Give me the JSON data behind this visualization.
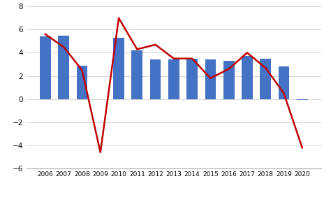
{
  "years": [
    2006,
    2007,
    2008,
    2009,
    2010,
    2011,
    2012,
    2013,
    2014,
    2015,
    2016,
    2017,
    2018,
    2019,
    2020
  ],
  "gdp_growth": [
    5.4,
    5.5,
    2.9,
    0.0,
    5.3,
    4.2,
    3.4,
    3.4,
    3.5,
    3.4,
    3.3,
    3.7,
    3.5,
    2.8,
    -0.1
  ],
  "maritime_growth": [
    5.6,
    4.5,
    2.5,
    -4.6,
    7.0,
    4.3,
    4.7,
    3.5,
    3.5,
    1.8,
    2.6,
    4.0,
    2.7,
    0.5,
    -4.2
  ],
  "bar_color": "#4472C4",
  "line_color": "#C00000",
  "ylim": [
    -6,
    8
  ],
  "yticks": [
    -6,
    -4,
    -2,
    0,
    2,
    4,
    6,
    8
  ],
  "background_color": "#ffffff",
  "grid_color": "#d0d0d0"
}
